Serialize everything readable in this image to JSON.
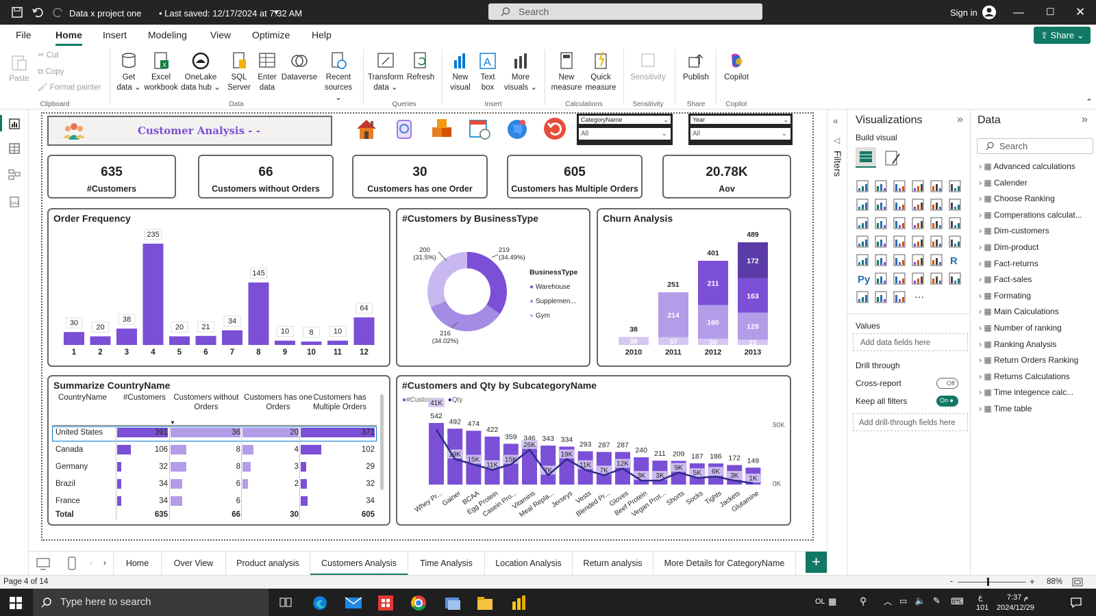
{
  "titlebar": {
    "title": "Data x project one",
    "saved": "• Last saved: 12/17/2024 at 7:32 AM",
    "search_placeholder": "Search",
    "signin": "Sign in"
  },
  "menu": [
    "File",
    "Home",
    "Insert",
    "Modeling",
    "View",
    "Optimize",
    "Help"
  ],
  "share_label": "Share",
  "ribbon": {
    "paste": "Paste",
    "cut": "Cut",
    "copy": "Copy",
    "format_painter": "Format painter",
    "clipboard": "Clipboard",
    "data_items": [
      [
        "Get",
        "data ⌄"
      ],
      [
        "Excel",
        "workbook"
      ],
      [
        "OneLake",
        "data hub ⌄"
      ],
      [
        "SQL",
        "Server"
      ],
      [
        "Enter",
        "data"
      ],
      [
        "Dataverse",
        ""
      ],
      [
        "Recent",
        "sources ⌄"
      ]
    ],
    "data_group": "Data",
    "queries_items": [
      [
        "Transform",
        "data ⌄"
      ],
      [
        "Refresh",
        ""
      ]
    ],
    "queries_group": "Queries",
    "insert_items": [
      [
        "New",
        "visual"
      ],
      [
        "Text",
        "box"
      ],
      [
        "More",
        "visuals ⌄"
      ]
    ],
    "insert_group": "Insert",
    "calc_items": [
      [
        "New",
        "measure"
      ],
      [
        "Quick",
        "measure"
      ]
    ],
    "calc_group": "Calculations",
    "sensitivity": "Sensitivity",
    "sensitivity_group": "Sensitivity",
    "publish": "Publish",
    "share_group": "Share",
    "copilot": "Copilot",
    "copilot_group": "Copilot"
  },
  "report": {
    "title": "Customer Analysis - -",
    "slicer1": {
      "label": "CategoryName",
      "value": "All"
    },
    "slicer2": {
      "label": "Year",
      "value": "All"
    },
    "cards": [
      {
        "value": "635",
        "label": "#Customers"
      },
      {
        "value": "66",
        "label": "Customers without Orders"
      },
      {
        "value": "30",
        "label": "Customers has one Order"
      },
      {
        "value": "605",
        "label": "Customers has Multiple Orders"
      },
      {
        "value": "20.78K",
        "label": "Aov"
      }
    ]
  },
  "order_freq": {
    "title": "Order Frequency"
  },
  "donut": {
    "title": "#Customers by BusinessType",
    "legend_title": "BusinessType",
    "legend": [
      "Warehouse",
      "Supplemen...",
      "Gym"
    ],
    "labels": [
      {
        "v": "219",
        "p": "(34.49%)"
      },
      {
        "v": "216",
        "p": "(34.02%)"
      },
      {
        "v": "200",
        "p": "(31.5%)"
      }
    ]
  },
  "churn": {
    "title": "Churn Analysis"
  },
  "country": {
    "title": "Summarize CountryName",
    "headers": [
      "CountryName",
      "#Customers",
      "Customers without Orders",
      "Customers has one Orders",
      "Customers has Multiple Orders"
    ],
    "rows": [
      [
        "United States",
        "391",
        "36",
        "20",
        "371"
      ],
      [
        "Canada",
        "106",
        "8",
        "4",
        "102"
      ],
      [
        "Germany",
        "32",
        "8",
        "3",
        "29"
      ],
      [
        "Brazil",
        "34",
        "6",
        "2",
        "32"
      ],
      [
        "France",
        "34",
        "6",
        "",
        "34"
      ]
    ],
    "total": [
      "Total",
      "635",
      "66",
      "30",
      "605"
    ]
  },
  "subcat": {
    "title": "#Customers and Qty by SubcategoryName",
    "legend": [
      "#Customers",
      "Qty"
    ],
    "axis_right": [
      "50K",
      "0K"
    ]
  },
  "chart_data": [
    {
      "type": "bar",
      "title": "Order Frequency",
      "categories": [
        "1",
        "2",
        "3",
        "4",
        "5",
        "6",
        "7",
        "8",
        "9",
        "10",
        "11",
        "12"
      ],
      "values": [
        30,
        20,
        38,
        235,
        20,
        21,
        34,
        145,
        10,
        8,
        10,
        64
      ]
    },
    {
      "type": "pie",
      "title": "#Customers by BusinessType",
      "categories": [
        "Warehouse",
        "Supplemen...",
        "Gym"
      ],
      "values": [
        219,
        216,
        200
      ],
      "percent": [
        "34.49%",
        "34.02%",
        "31.5%"
      ]
    },
    {
      "type": "bar",
      "title": "Churn Analysis",
      "categories": [
        "2010",
        "2011",
        "2012",
        "2013"
      ],
      "totals": [
        38,
        251,
        401,
        489
      ],
      "series": [
        {
          "values": [
            38,
            37,
            30,
            25
          ]
        },
        {
          "values": [
            0,
            214,
            160,
            129
          ]
        },
        {
          "values": [
            0,
            0,
            211,
            163
          ]
        },
        {
          "values": [
            0,
            0,
            0,
            172
          ]
        }
      ]
    },
    {
      "type": "bar",
      "title": "#Customers and Qty by SubcategoryName",
      "categories": [
        "Whey Pr...",
        "Gainer",
        "BCAA",
        "Egg Protein",
        "Casein Pro...",
        "Vitamins",
        "Meal Repla...",
        "Jerseys",
        "Vests",
        "Blended Pr...",
        "Gloves",
        "Beef Protein",
        "Vegan Prot...",
        "Shorts",
        "Socks",
        "Tights",
        "Jackets",
        "Glutamine"
      ],
      "series": [
        {
          "name": "#Customers",
          "values": [
            542,
            492,
            474,
            422,
            359,
            346,
            343,
            334,
            293,
            287,
            287,
            240,
            211,
            209,
            187,
            186,
            172,
            149
          ]
        },
        {
          "name": "Qty",
          "values": [
            41000,
            19000,
            15000,
            11000,
            15000,
            26000,
            7000,
            19000,
            11000,
            7000,
            12000,
            3000,
            3000,
            9000,
            5000,
            6000,
            3000,
            1000
          ]
        }
      ],
      "qty_labels": [
        "41K",
        "19K",
        "15K",
        "11K",
        "15K",
        "26K",
        "7K",
        "19K",
        "11K",
        "7K",
        "12K",
        "3K",
        "3K",
        "9K",
        "5K",
        "6K",
        "3K",
        "1K"
      ]
    }
  ],
  "viz_pane": {
    "title": "Visualizations",
    "build": "Build visual",
    "values": "Values",
    "add_fields": "Add data fields here",
    "drill": "Drill through",
    "cross": "Cross-report",
    "cross_state": "Off",
    "keep": "Keep all filters",
    "keep_state": "On",
    "add_drill": "Add drill-through fields here"
  },
  "filters_label": "Filters",
  "data_pane": {
    "title": "Data",
    "search": "Search",
    "items": [
      "Advanced calculations",
      "Calender",
      "Choose Ranking",
      "Comperations calculat...",
      "Dim-customers",
      "Dim-product",
      "Fact-returns",
      "Fact-sales",
      "Formating",
      "Main Calculations",
      "Number of ranking",
      "Ranking Analysis",
      "Return Orders Ranking",
      "Returns Calculations",
      "Time integence calc...",
      "Time table"
    ]
  },
  "tabs": [
    "Home",
    "Over View",
    "Product analysis",
    "Customers Analysis",
    "Time Analysis",
    "Location Analysis",
    "Return analysis",
    "More Details for CategoryName"
  ],
  "status": {
    "page": "Page 4 of 14",
    "zoom": "88%"
  },
  "taskbar": {
    "search": "Type here to search",
    "lang": "OL",
    "time": "7:37 م",
    "date": "2024/12/29",
    "kb": "ع",
    "kb2": "101"
  },
  "colors": {
    "purple": "#7b4fd6",
    "light": "#b39ce8",
    "dark": "#5b3ba8",
    "pale": "#d4c7f3",
    "accent": "#117865"
  }
}
